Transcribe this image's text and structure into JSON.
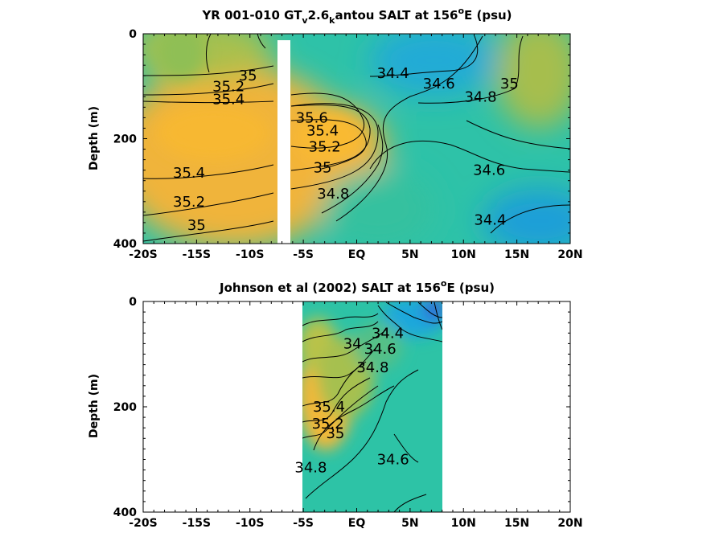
{
  "chart_data": [
    {
      "type": "heatmap",
      "title": "YR 001-010 GT",
      "title_sub1": "v",
      "title_mid": "2.6",
      "title_sub2": "k",
      "title_end": "antou SALT at 156",
      "title_sup": "o",
      "title_tail": "E (psu)",
      "ylabel": "Depth (m)",
      "xticks": [
        "-20S",
        "-15S",
        "-10S",
        "-5S",
        "EQ",
        "5N",
        "10N",
        "15N",
        "20N"
      ],
      "xtick_values": [
        -20,
        -15,
        -10,
        -5,
        0,
        5,
        10,
        15,
        20
      ],
      "yticks": [
        "0",
        "200",
        "400"
      ],
      "ytick_values": [
        0,
        200,
        400
      ],
      "xlim": [
        -20,
        20
      ],
      "ylim": [
        0,
        400
      ],
      "contour_labels": [
        {
          "text": "35",
          "x": -10.2,
          "depth": 80
        },
        {
          "text": "35.2",
          "x": -12.0,
          "depth": 100
        },
        {
          "text": "35.4",
          "x": -12.0,
          "depth": 125
        },
        {
          "text": "35.6",
          "x": -4.2,
          "depth": 160
        },
        {
          "text": "35.4",
          "x": -3.2,
          "depth": 185
        },
        {
          "text": "35.2",
          "x": -3.0,
          "depth": 215
        },
        {
          "text": "35",
          "x": -3.2,
          "depth": 255
        },
        {
          "text": "34.8",
          "x": -2.2,
          "depth": 305
        },
        {
          "text": "35.4",
          "x": -15.7,
          "depth": 265
        },
        {
          "text": "35.2",
          "x": -15.7,
          "depth": 320
        },
        {
          "text": "35",
          "x": -15.0,
          "depth": 365
        },
        {
          "text": "34.4",
          "x": 3.4,
          "depth": 75
        },
        {
          "text": "34.6",
          "x": 7.7,
          "depth": 95
        },
        {
          "text": "34.8",
          "x": 11.6,
          "depth": 120
        },
        {
          "text": "35",
          "x": 14.3,
          "depth": 95
        },
        {
          "text": "34.6",
          "x": 12.4,
          "depth": 260
        },
        {
          "text": "34.4",
          "x": 12.5,
          "depth": 355
        }
      ]
    },
    {
      "type": "heatmap",
      "title": "Johnson et al (2002) SALT at 156",
      "title_sup": "o",
      "title_tail": "E (psu)",
      "ylabel": "Depth (m)",
      "xticks": [
        "-20S",
        "-15S",
        "-10S",
        "-5S",
        "EQ",
        "5N",
        "10N",
        "15N",
        "20N"
      ],
      "xtick_values": [
        -20,
        -15,
        -10,
        -5,
        0,
        5,
        10,
        15,
        20
      ],
      "yticks": [
        "0",
        "200",
        "400"
      ],
      "ytick_values": [
        0,
        200,
        400
      ],
      "xlim": [
        -20,
        20
      ],
      "ylim": [
        0,
        400
      ],
      "data_xrange": [
        -5,
        8
      ],
      "contour_labels": [
        {
          "text": "34.4",
          "x": 2.9,
          "depth": 60
        },
        {
          "text": "34.6",
          "x": 2.2,
          "depth": 90
        },
        {
          "text": "34.8",
          "x": 1.5,
          "depth": 125
        },
        {
          "text": "34",
          "x": -0.4,
          "depth": 80
        },
        {
          "text": "35.4",
          "x": -2.6,
          "depth": 200
        },
        {
          "text": "35.2",
          "x": -2.7,
          "depth": 232
        },
        {
          "text": "35",
          "x": -2.0,
          "depth": 250
        },
        {
          "text": "34.8",
          "x": -4.3,
          "depth": 315
        },
        {
          "text": "34.6",
          "x": 3.4,
          "depth": 300
        }
      ]
    }
  ],
  "colors": {
    "salty_high": "#f7b733",
    "salty_mid": "#b8c24a",
    "fresh_mid": "#2ec2a8",
    "fresh_low": "#1da8de",
    "freshest": "#2a66d8"
  }
}
